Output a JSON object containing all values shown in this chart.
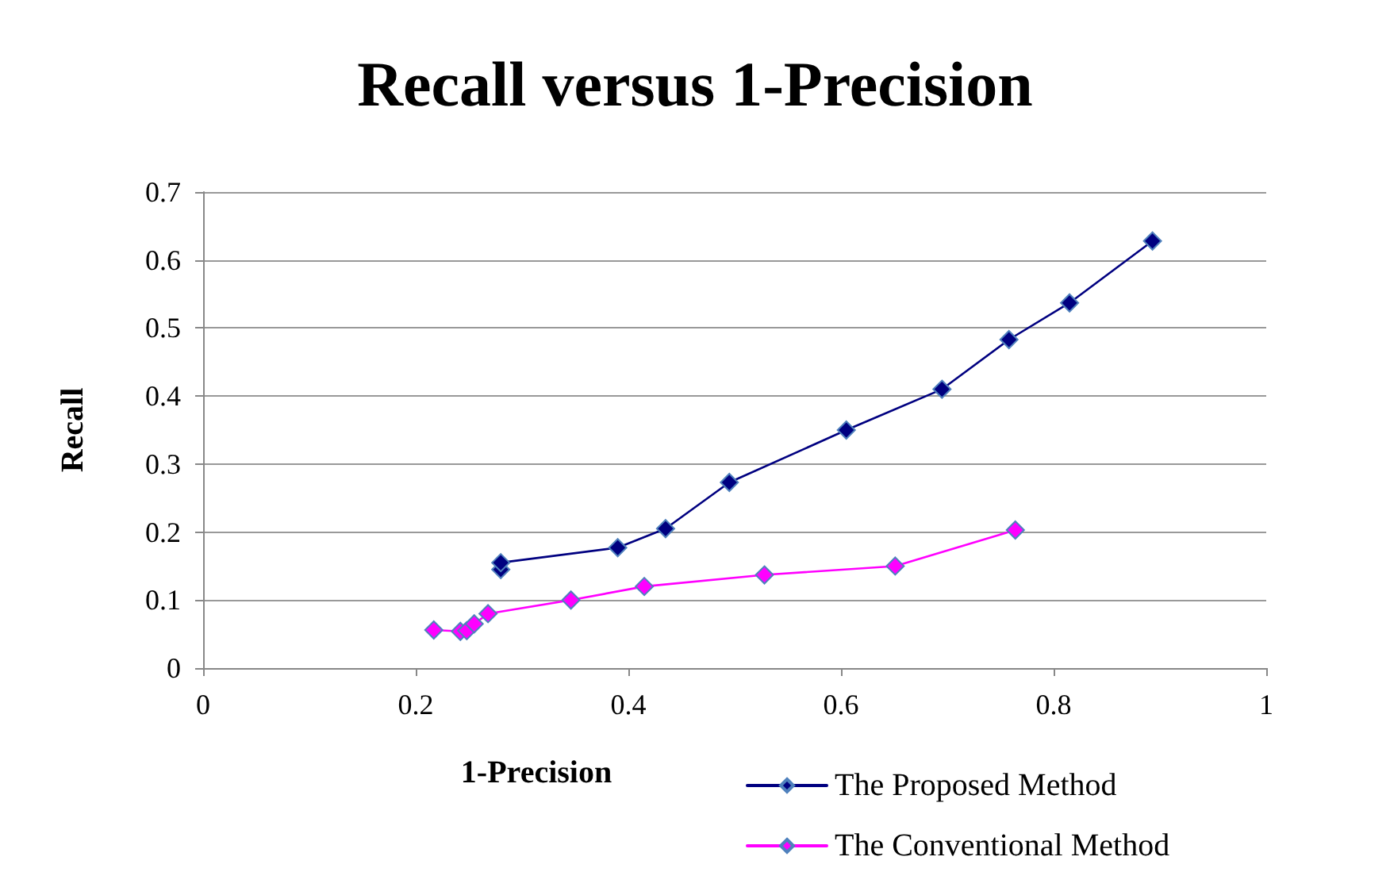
{
  "chart_data": {
    "type": "line",
    "title": "Recall versus 1-Precision",
    "xlabel": "1-Precision",
    "ylabel": "Recall",
    "xlim": [
      0,
      1
    ],
    "xticks": [
      0,
      0.2,
      0.4,
      0.6,
      0.8,
      1
    ],
    "ylim": [
      0,
      0.7
    ],
    "yticks": [
      0,
      0.1,
      0.2,
      0.3,
      0.4,
      0.5,
      0.6,
      0.7
    ],
    "grid": "y",
    "legend": "bottom right",
    "marker": "diamond",
    "line_style": "solid",
    "series": [
      {
        "name": "The Proposed Method",
        "color": "#000080",
        "x": [
          0.28,
          0.28,
          0.39,
          0.435,
          0.495,
          0.605,
          0.695,
          0.758,
          0.815,
          0.893
        ],
        "values": [
          0.145,
          0.155,
          0.177,
          0.205,
          0.273,
          0.35,
          0.41,
          0.483,
          0.537,
          0.628
        ]
      },
      {
        "name": "The Conventional Method",
        "color": "#ff00ff",
        "x": [
          0.217,
          0.242,
          0.248,
          0.255,
          0.268,
          0.346,
          0.415,
          0.528,
          0.651,
          0.764
        ],
        "values": [
          0.056,
          0.054,
          0.055,
          0.065,
          0.08,
          0.1,
          0.12,
          0.137,
          0.15,
          0.203
        ]
      }
    ]
  }
}
